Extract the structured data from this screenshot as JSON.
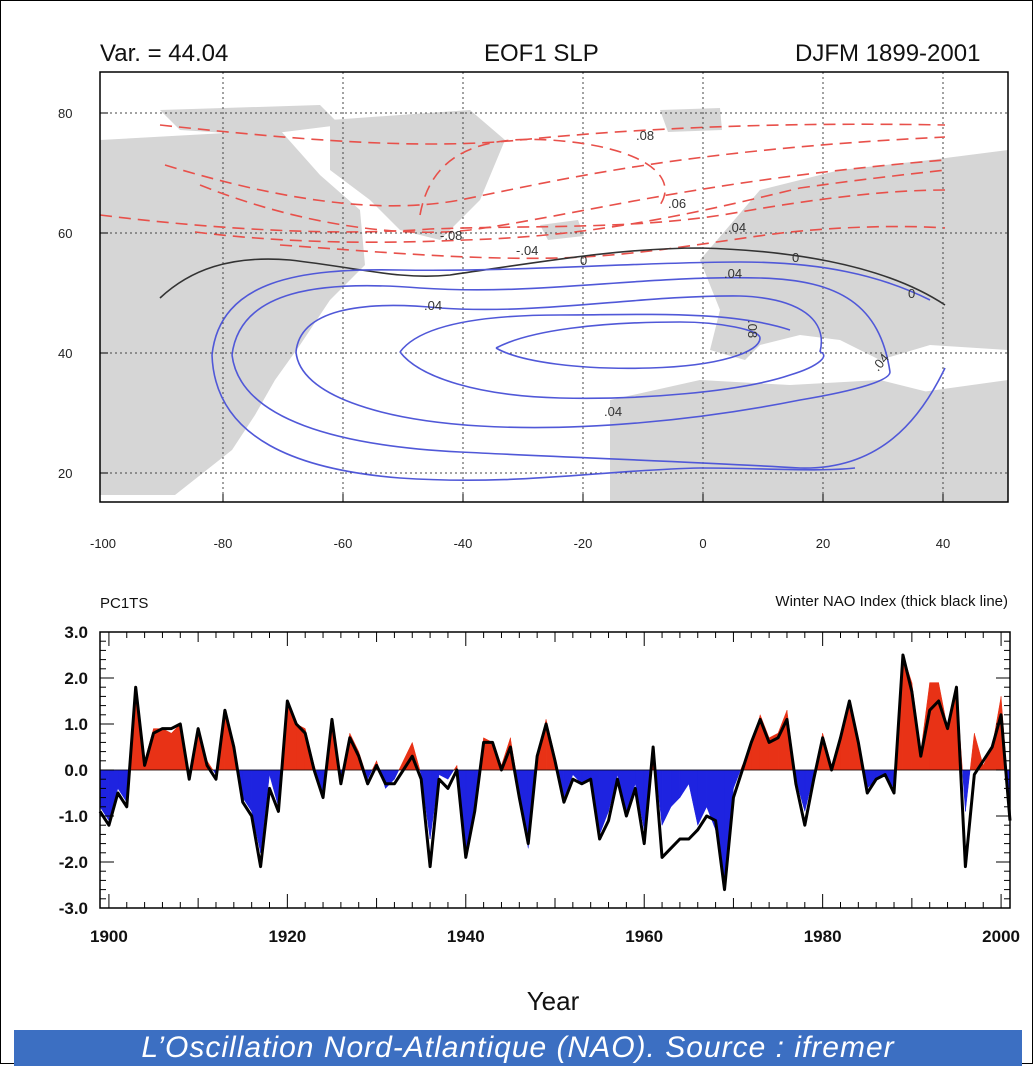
{
  "map": {
    "header_left": "Var. = 44.04",
    "header_center": "EOF1 SLP",
    "header_right": "DJFM 1899-2001",
    "y_ticks": [
      "80",
      "60",
      "40",
      "20"
    ],
    "x_ticks": [
      "-100",
      "-80",
      "-60",
      "-40",
      "-20",
      "0",
      "20",
      "40"
    ],
    "contour_labels": {
      "neg": [
        ".08",
        ".06",
        ".04",
        "-.08",
        "-.04"
      ],
      "pos": [
        ".04",
        ".04",
        ".08",
        ".04",
        ".04"
      ],
      "zero": [
        "0",
        "0",
        "0"
      ]
    },
    "colors": {
      "negative": "#e8504a",
      "positive": "#5058d8",
      "zero": "#333333",
      "land": "#d6d6d6"
    }
  },
  "timeseries": {
    "label_left": "PC1TS",
    "label_right": "Winter NAO Index (thick black line)",
    "xlabel": "Year"
  },
  "caption": "L’Oscillation Nord-Atlantique (NAO). Source : ifremer",
  "chart_data": [
    {
      "type": "heatmap",
      "title": "EOF1 SLP",
      "subtitle": "DJFM 1899-2001",
      "note": "Var. = 44.04",
      "x_ticks": [
        -100,
        -80,
        -60,
        -40,
        -20,
        0,
        20,
        40
      ],
      "y_ticks": [
        20,
        40,
        60,
        80
      ],
      "xlim": [
        -100,
        50
      ],
      "ylim": [
        15,
        85
      ],
      "grid": true
    },
    {
      "type": "area",
      "title": "PC1TS",
      "subtitle": "Winter NAO Index (thick black line)",
      "xlabel": "Year",
      "ylabel": "",
      "xlim": [
        1899,
        2001
      ],
      "ylim": [
        -3,
        3
      ],
      "x_ticks": [
        1900,
        1920,
        1940,
        1960,
        1980,
        2000
      ],
      "y_ticks": [
        3.0,
        2.0,
        1.0,
        0.0,
        -1.0,
        -2.0,
        -3.0
      ],
      "x": [
        1899,
        1900,
        1901,
        1902,
        1903,
        1904,
        1905,
        1906,
        1907,
        1908,
        1909,
        1910,
        1911,
        1912,
        1913,
        1914,
        1915,
        1916,
        1917,
        1918,
        1919,
        1920,
        1921,
        1922,
        1923,
        1924,
        1925,
        1926,
        1927,
        1928,
        1929,
        1930,
        1931,
        1932,
        1933,
        1934,
        1935,
        1936,
        1937,
        1938,
        1939,
        1940,
        1941,
        1942,
        1943,
        1944,
        1945,
        1946,
        1947,
        1948,
        1949,
        1950,
        1951,
        1952,
        1953,
        1954,
        1955,
        1956,
        1957,
        1958,
        1959,
        1960,
        1961,
        1962,
        1963,
        1964,
        1965,
        1966,
        1967,
        1968,
        1969,
        1970,
        1971,
        1972,
        1973,
        1974,
        1975,
        1976,
        1977,
        1978,
        1979,
        1980,
        1981,
        1982,
        1983,
        1984,
        1985,
        1986,
        1987,
        1988,
        1989,
        1990,
        1991,
        1992,
        1993,
        1994,
        1995,
        1996,
        1997,
        1998,
        1999,
        2000,
        2001
      ],
      "series": [
        {
          "name": "PC1TS",
          "values": [
            -0.8,
            -1.1,
            -0.4,
            -0.7,
            1.7,
            0.2,
            0.9,
            0.9,
            0.8,
            1.0,
            -0.1,
            0.9,
            0.2,
            -0.1,
            1.2,
            0.6,
            -0.6,
            -0.9,
            -1.8,
            -0.1,
            -0.8,
            1.5,
            1.0,
            0.9,
            0.1,
            -0.5,
            1.1,
            -0.2,
            0.8,
            0.4,
            -0.2,
            0.2,
            -0.4,
            -0.2,
            0.2,
            0.6,
            -0.1,
            -1.5,
            -0.1,
            -0.2,
            0.1,
            -1.9,
            -0.8,
            0.7,
            0.6,
            0.1,
            0.7,
            -0.5,
            -1.7,
            0.3,
            1.1,
            0.3,
            -0.6,
            -0.1,
            -0.3,
            -0.2,
            -1.4,
            -0.9,
            -0.1,
            -0.9,
            -0.3,
            -1.3,
            0.5,
            -1.2,
            -0.8,
            -0.6,
            -0.3,
            -1.2,
            -0.8,
            -1.3,
            -2.5,
            -0.4,
            0.1,
            0.5,
            1.2,
            0.7,
            0.8,
            1.3,
            -0.2,
            -0.9,
            -0.1,
            0.8,
            0.1,
            0.6,
            1.5,
            0.6,
            -0.4,
            -0.2,
            -0.1,
            -0.4,
            2.5,
            1.9,
            0.4,
            1.9,
            1.9,
            0.9,
            1.8,
            -0.9,
            0.8,
            0.1,
            0.5,
            1.6,
            -1.0
          ]
        },
        {
          "name": "Winter NAO Index",
          "values": [
            -0.9,
            -1.2,
            -0.5,
            -0.8,
            1.8,
            0.1,
            0.8,
            0.9,
            0.9,
            1.0,
            -0.2,
            0.9,
            0.1,
            -0.2,
            1.3,
            0.5,
            -0.7,
            -1.0,
            -2.1,
            -0.4,
            -0.9,
            1.5,
            1.0,
            0.8,
            0.0,
            -0.6,
            1.1,
            -0.3,
            0.7,
            0.3,
            -0.3,
            0.1,
            -0.3,
            -0.3,
            0.0,
            0.3,
            -0.2,
            -2.1,
            -0.2,
            -0.4,
            0.0,
            -1.9,
            -0.9,
            0.6,
            0.6,
            0.0,
            0.5,
            -0.6,
            -1.6,
            0.3,
            1.0,
            0.2,
            -0.7,
            -0.2,
            -0.3,
            -0.2,
            -1.5,
            -1.1,
            -0.2,
            -1.0,
            -0.4,
            -1.6,
            0.5,
            -1.9,
            -1.7,
            -1.5,
            -1.5,
            -1.3,
            -1.0,
            -1.1,
            -2.6,
            -0.6,
            0.0,
            0.6,
            1.1,
            0.6,
            0.7,
            1.1,
            -0.3,
            -1.2,
            -0.2,
            0.7,
            0.0,
            0.7,
            1.5,
            0.6,
            -0.5,
            -0.2,
            -0.1,
            -0.5,
            2.5,
            1.7,
            0.3,
            1.3,
            1.5,
            0.9,
            1.8,
            -2.1,
            -0.1,
            0.2,
            0.5,
            1.2,
            -1.1
          ]
        }
      ],
      "colors": {
        "positive": "#e83216",
        "negative": "#1e23e0",
        "line": "#000000"
      }
    }
  ]
}
